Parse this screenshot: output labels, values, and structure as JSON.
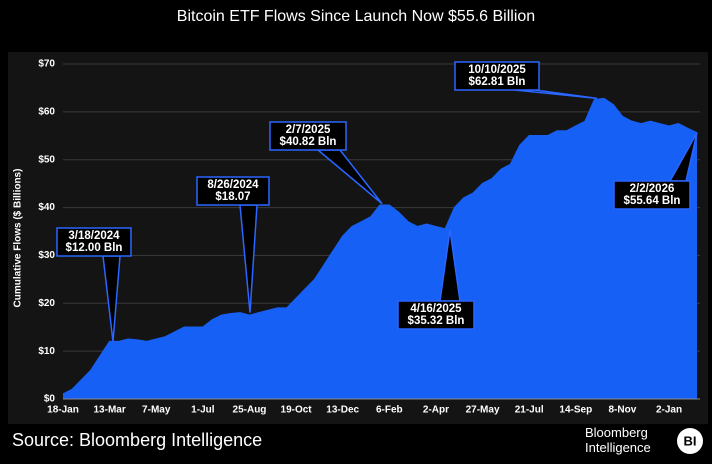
{
  "chart_data": {
    "type": "area",
    "title": "Bitcoin ETF Flows Since Launch Now $55.6 Billion",
    "y_label": "Cumulative Flows ($ Billions)",
    "source": "Source: Bloomberg Intelligence",
    "logo": {
      "name": "Bloomberg Intelligence",
      "mark": "BI"
    },
    "color": "#1760f5",
    "grid": true,
    "categories": [
      "18-Jan",
      null,
      null,
      null,
      null,
      "13-Mar",
      null,
      null,
      null,
      null,
      "7-May",
      null,
      null,
      null,
      null,
      "1-Jul",
      null,
      null,
      null,
      null,
      "25-Aug",
      null,
      null,
      null,
      null,
      "19-Oct",
      null,
      null,
      null,
      null,
      "13-Dec",
      null,
      null,
      null,
      null,
      "6-Feb",
      null,
      null,
      null,
      null,
      "2-Apr",
      null,
      null,
      null,
      null,
      "27-May",
      null,
      null,
      null,
      null,
      "21-Jul",
      null,
      null,
      null,
      null,
      "14-Sep",
      null,
      null,
      null,
      null,
      "8-Nov",
      null,
      null,
      null,
      null,
      "2-Jan",
      null,
      null,
      null
    ],
    "values": [
      1,
      2,
      4,
      6,
      9,
      12,
      12,
      12.5,
      12.3,
      12,
      12.5,
      13,
      14,
      15,
      15,
      15,
      16.5,
      17.5,
      17.8,
      18,
      17.5,
      18,
      18.5,
      19,
      19,
      21,
      23,
      25,
      28,
      31,
      34,
      36,
      37,
      38,
      40.5,
      40.5,
      39,
      37,
      36,
      36.5,
      36,
      35.5,
      40,
      42,
      43,
      45,
      46,
      48,
      49,
      53,
      55,
      55,
      55,
      56,
      56,
      57,
      58,
      62.5,
      62.8,
      61.5,
      59,
      58,
      57.5,
      58,
      57.5,
      57,
      57.5,
      56.5,
      55.6
    ],
    "ylim": [
      0,
      70
    ],
    "yticks": [
      {
        "value": 0,
        "label": "$0"
      },
      {
        "value": 10,
        "label": "$10"
      },
      {
        "value": 20,
        "label": "$20"
      },
      {
        "value": 30,
        "label": "$30"
      },
      {
        "value": 40,
        "label": "$40"
      },
      {
        "value": 50,
        "label": "$50"
      },
      {
        "value": 60,
        "label": "$60"
      },
      {
        "value": 70,
        "label": "$70"
      }
    ],
    "annotations": [
      {
        "date": "3/18/2024",
        "label": "$12.00 Bln",
        "value": 12.0
      },
      {
        "date": "8/26/2024",
        "label": "$18.07",
        "value": 18.07
      },
      {
        "date": "2/7/2025",
        "label": "$40.82 Bln",
        "value": 40.82
      },
      {
        "date": "4/16/2025",
        "label": "$35.32 Bln",
        "value": 35.32
      },
      {
        "date": "10/10/2025",
        "label": "$62.81 Bln",
        "value": 62.81
      },
      {
        "date": "2/2/2026",
        "label": "$55.64 Bln",
        "value": 55.64
      }
    ]
  }
}
